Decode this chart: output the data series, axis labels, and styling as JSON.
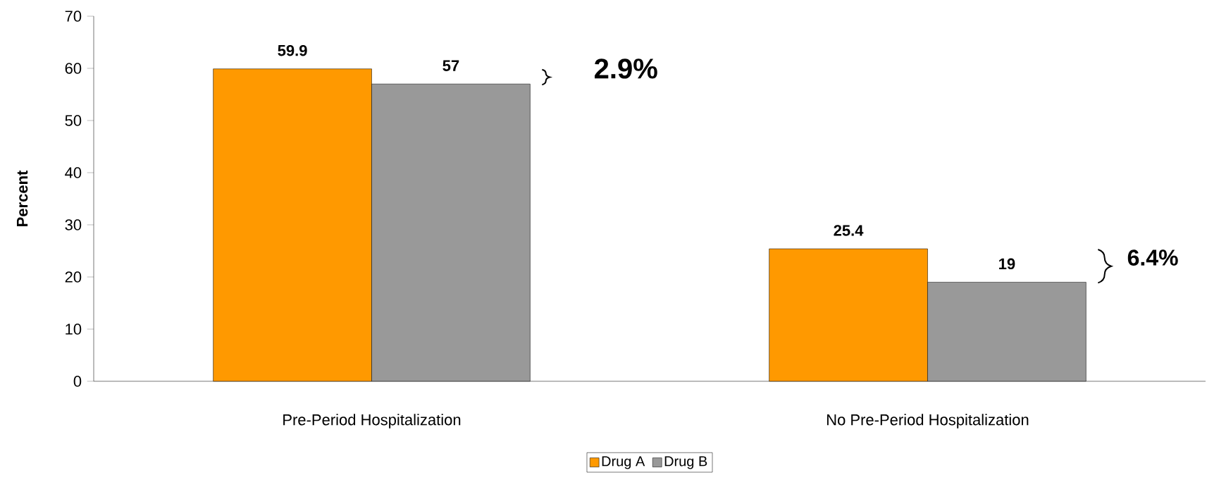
{
  "chart_data": {
    "type": "bar",
    "ylabel": "Percent",
    "categories": [
      "Pre-Period Hospitalization",
      "No Pre-Period Hospitalization"
    ],
    "series": [
      {
        "name": "Drug A",
        "color": "#ff9900",
        "values": [
          59.9,
          25.4
        ]
      },
      {
        "name": "Drug B",
        "color": "#999999",
        "values": [
          57,
          19
        ]
      }
    ],
    "ylim": [
      0,
      70
    ],
    "yticks": [
      0,
      10,
      20,
      30,
      40,
      50,
      60,
      70
    ],
    "data_labels": true,
    "legend": "bottom",
    "annotations": [
      "2.9%",
      "6.4%"
    ]
  }
}
